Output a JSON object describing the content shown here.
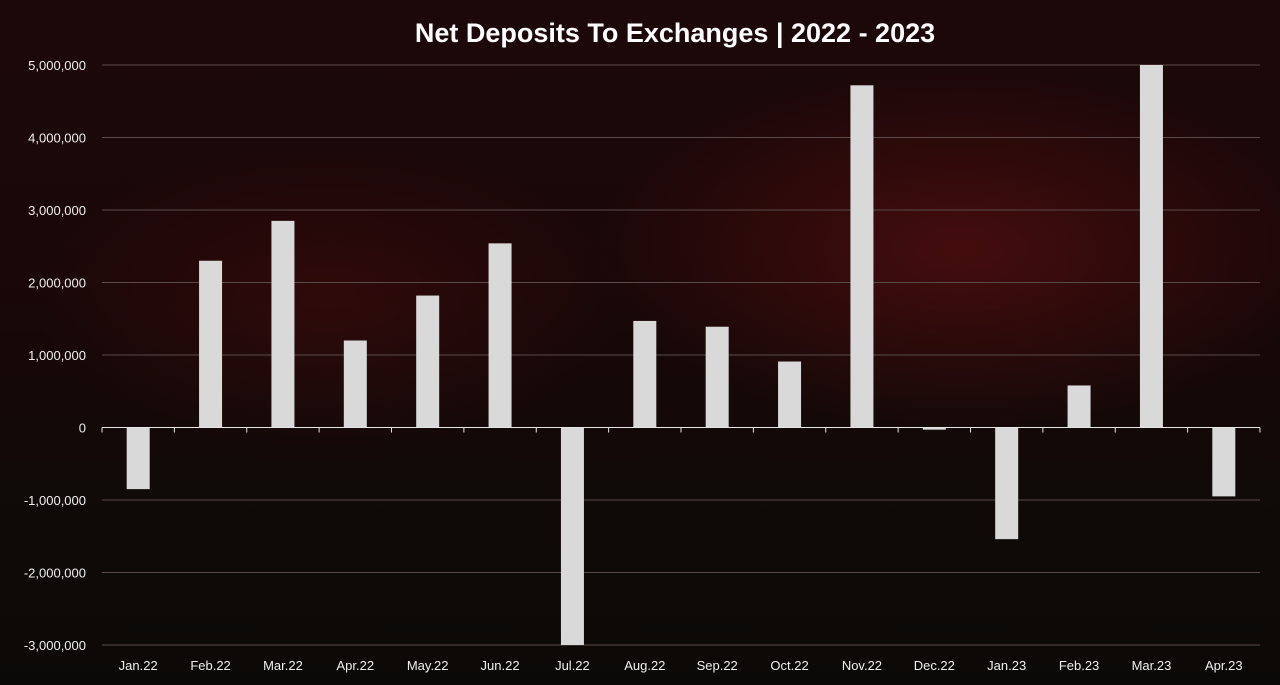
{
  "chart_data": {
    "type": "bar",
    "title": "Net Deposits To Exchanges | 2022 - 2023",
    "xlabel": "",
    "ylabel": "",
    "categories": [
      "Jan.22",
      "Feb.22",
      "Mar.22",
      "Apr.22",
      "May.22",
      "Jun.22",
      "Jul.22",
      "Aug.22",
      "Sep.22",
      "Oct.22",
      "Nov.22",
      "Dec.22",
      "Jan.23",
      "Feb.23",
      "Mar.23",
      "Apr.23"
    ],
    "values": [
      -850000,
      2300000,
      2850000,
      1200000,
      1820000,
      2540000,
      -3000000,
      1470000,
      1390000,
      910000,
      4720000,
      -30000,
      -1540000,
      580000,
      5000000,
      -950000
    ],
    "ylim": [
      -3000000,
      5000000
    ],
    "yticks": [
      5000000,
      4000000,
      3000000,
      2000000,
      1000000,
      0,
      -1000000,
      -2000000,
      -3000000
    ],
    "ytick_labels": [
      "5,000,000",
      "4,000,000",
      "3,000,000",
      "2,000,000",
      "1,000,000",
      "0",
      "-1,000,000",
      "-2,000,000",
      "-3,000,000"
    ],
    "grid": true,
    "legend": "none",
    "bar_color": "#d9d9d9",
    "grid_color": "#5a4a4a",
    "background_color": "#140607"
  }
}
